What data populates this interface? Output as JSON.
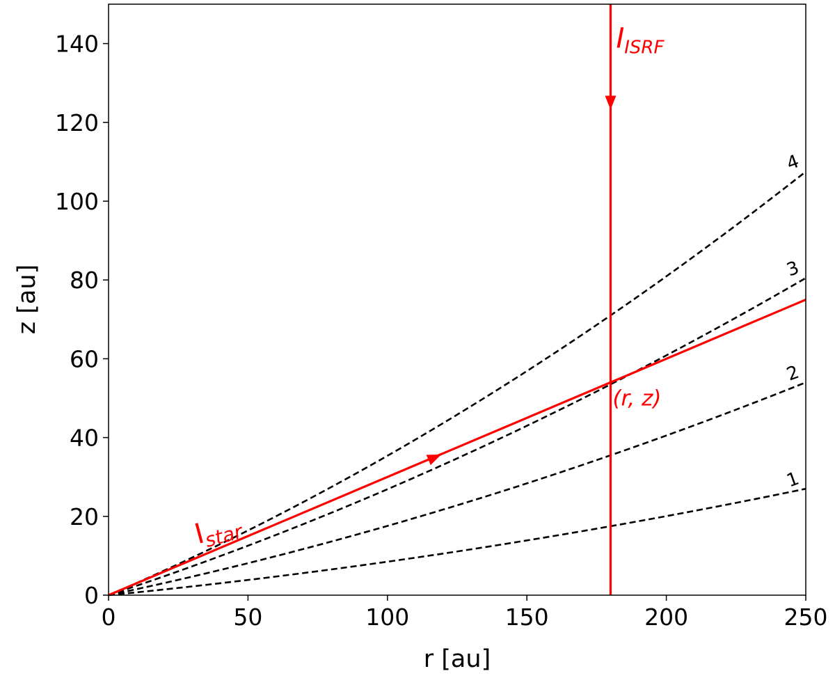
{
  "chart_data": {
    "type": "line",
    "xlabel": "r [au]",
    "ylabel": "z [au]",
    "xlim": [
      0,
      250
    ],
    "ylim": [
      0,
      150
    ],
    "xticks": [
      0,
      50,
      100,
      150,
      200,
      250
    ],
    "yticks": [
      0,
      20,
      40,
      60,
      80,
      100,
      120,
      140
    ],
    "grid": false,
    "surfaces": [
      {
        "label": "1",
        "x": [
          0,
          180,
          250
        ],
        "y": [
          0,
          17.5,
          27
        ],
        "color": "#000000",
        "style": "dashed"
      },
      {
        "label": "2",
        "x": [
          0,
          180,
          250
        ],
        "y": [
          0,
          35.5,
          54
        ],
        "color": "#000000",
        "style": "dashed"
      },
      {
        "label": "3",
        "x": [
          0,
          180,
          250
        ],
        "y": [
          0,
          53.5,
          80.5
        ],
        "color": "#000000",
        "style": "dashed"
      },
      {
        "label": "4",
        "x": [
          0,
          180,
          250
        ],
        "y": [
          0,
          71,
          107.5
        ],
        "color": "#000000",
        "style": "dashed"
      }
    ],
    "rays": [
      {
        "label_main": "I",
        "label_sub": "star",
        "x": [
          0,
          250
        ],
        "y": [
          0,
          75
        ],
        "arrow_at": [
          117,
          35
        ],
        "arrow_dir": "along",
        "color": "#ff0000"
      },
      {
        "label_main": "I",
        "label_sub": "ISRF",
        "x": [
          180,
          180
        ],
        "y": [
          150,
          0
        ],
        "arrow_at": [
          180,
          125
        ],
        "arrow_dir": "down",
        "color": "#ff0000"
      }
    ],
    "point": {
      "label": "(r, z)",
      "x": 180,
      "y": 54,
      "color": "#ff0000"
    }
  }
}
